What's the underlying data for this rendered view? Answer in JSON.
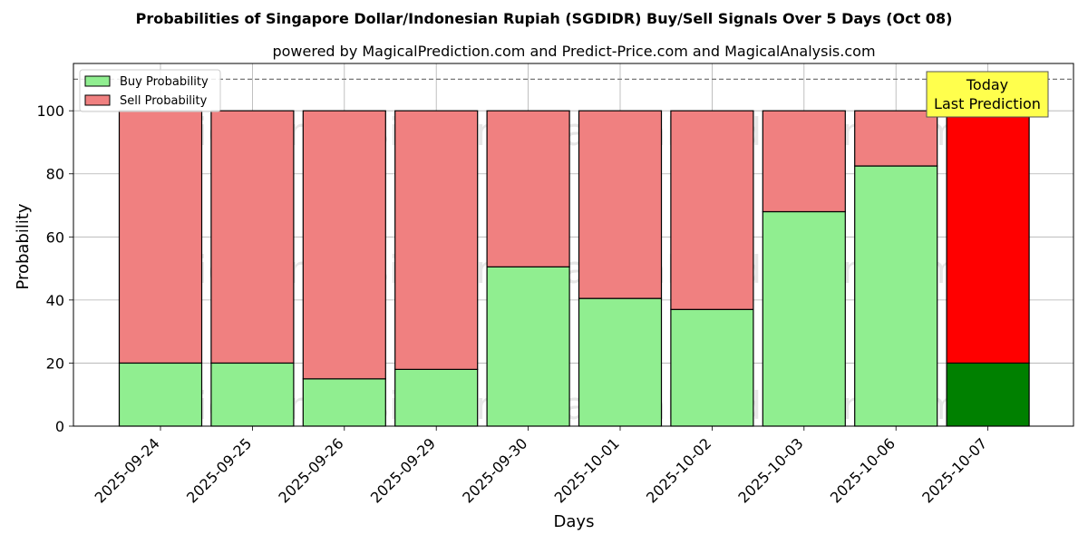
{
  "chart_data": {
    "type": "bar",
    "stacked": true,
    "title": "Probabilities of Singapore Dollar/Indonesian Rupiah (SGDIDR) Buy/Sell Signals Over 5 Days (Oct 08)",
    "subtitle": "powered by MagicalPrediction.com and Predict-Price.com and MagicalAnalysis.com",
    "xlabel": "Days",
    "ylabel": "Probability",
    "ylim": [
      0,
      115
    ],
    "yticks": [
      0,
      20,
      40,
      60,
      80,
      100
    ],
    "reference_line": 110,
    "grid": true,
    "legend_position": "top-left",
    "categories": [
      "2025-09-24",
      "2025-09-25",
      "2025-09-26",
      "2025-09-29",
      "2025-09-30",
      "2025-10-01",
      "2025-10-02",
      "2025-10-03",
      "2025-10-06",
      "2025-10-07"
    ],
    "series": [
      {
        "name": "Buy Probability",
        "color": "#90ee90",
        "highlight_color": "#008000",
        "values": [
          20,
          20,
          15,
          18,
          50.5,
          40.5,
          37,
          68,
          82.5,
          20
        ]
      },
      {
        "name": "Sell Probability",
        "color": "#f08080",
        "highlight_color": "#ff0000",
        "values": [
          80,
          80,
          85,
          82,
          49.5,
          59.5,
          63,
          32,
          17.5,
          80
        ]
      }
    ],
    "highlight_index": 9,
    "annotation": {
      "lines": [
        "Today",
        "Last Prediction"
      ],
      "color": "#ffff4d"
    },
    "watermarks": [
      "MagicalAnalysis.com",
      "MagicalPrediction.com"
    ]
  }
}
